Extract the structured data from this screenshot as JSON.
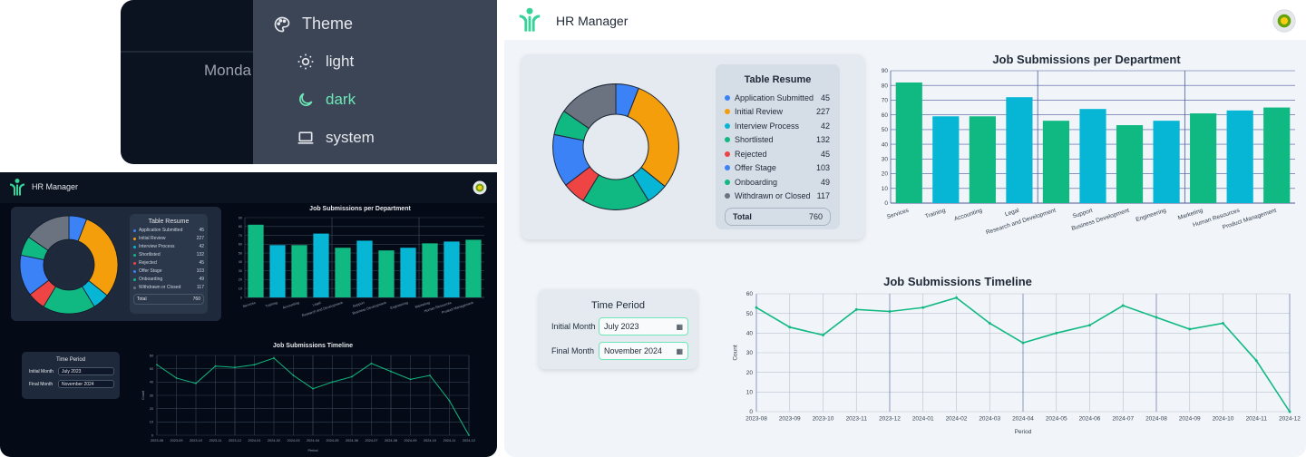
{
  "theme_menu": {
    "background_text": "Monda",
    "title": "Theme",
    "options": [
      {
        "label": "light",
        "icon": "sun-icon"
      },
      {
        "label": "dark",
        "icon": "moon-icon",
        "selected": true
      },
      {
        "label": "system",
        "icon": "laptop-icon"
      }
    ]
  },
  "app": {
    "title": "HR Manager"
  },
  "table_resume": {
    "title": "Table Resume",
    "rows": [
      {
        "label": "Application Submitted",
        "value": "45",
        "color": "#3b82f6"
      },
      {
        "label": "Initial Review",
        "value": "227",
        "color": "#f59e0b"
      },
      {
        "label": "Interview Process",
        "value": "42",
        "color": "#06b6d4"
      },
      {
        "label": "Shortlisted",
        "value": "132",
        "color": "#10b981"
      },
      {
        "label": "Rejected",
        "value": "45",
        "color": "#ef4444"
      },
      {
        "label": "Offer Stage",
        "value": "103",
        "color": "#3b82f6"
      },
      {
        "label": "Onboarding",
        "value": "49",
        "color": "#10b981"
      },
      {
        "label": "Withdrawn or Closed",
        "value": "117",
        "color": "#6b7280"
      }
    ],
    "total_label": "Total",
    "total_value": "760"
  },
  "time_period": {
    "title": "Time Period",
    "initial_label": "Initial Month",
    "initial_value": "July 2023",
    "final_label": "Final Month",
    "final_value": "November 2024"
  },
  "colors": {
    "green": "#10b981",
    "cyan": "#06b6d4"
  },
  "chart_data": [
    {
      "type": "pie",
      "categories": [
        "Application Submitted",
        "Initial Review",
        "Interview Process",
        "Shortlisted",
        "Rejected",
        "Offer Stage",
        "Onboarding",
        "Withdrawn or Closed"
      ],
      "values": [
        45,
        227,
        42,
        132,
        45,
        103,
        49,
        117
      ]
    },
    {
      "type": "bar",
      "title": "Job Submissions per Department",
      "categories": [
        "Services",
        "Training",
        "Accounting",
        "Legal",
        "Research and Development",
        "Support",
        "Business Development",
        "Engineering",
        "Marketing",
        "Human Resources",
        "Product Management"
      ],
      "values": [
        82,
        59,
        59,
        72,
        56,
        64,
        53,
        56,
        61,
        63,
        65
      ],
      "ylim": [
        0,
        90
      ],
      "yticks": [
        0,
        10,
        20,
        30,
        40,
        50,
        60,
        70,
        80,
        90
      ],
      "grid": true
    },
    {
      "type": "line",
      "title": "Job Submissions Timeline",
      "x": [
        "2023-08",
        "2023-09",
        "2023-10",
        "2023-11",
        "2023-12",
        "2024-01",
        "2024-02",
        "2024-03",
        "2024-04",
        "2024-05",
        "2024-06",
        "2024-07",
        "2024-08",
        "2024-09",
        "2024-10",
        "2024-11",
        "2024-12"
      ],
      "values": [
        53,
        43,
        39,
        52,
        51,
        53,
        58,
        45,
        35,
        40,
        44,
        54,
        48,
        42,
        45,
        26,
        0
      ],
      "xlabel": "Period",
      "ylabel": "Count",
      "ylim": [
        0,
        60
      ],
      "yticks": [
        0,
        10,
        20,
        30,
        40,
        50,
        60
      ],
      "grid": true
    }
  ]
}
